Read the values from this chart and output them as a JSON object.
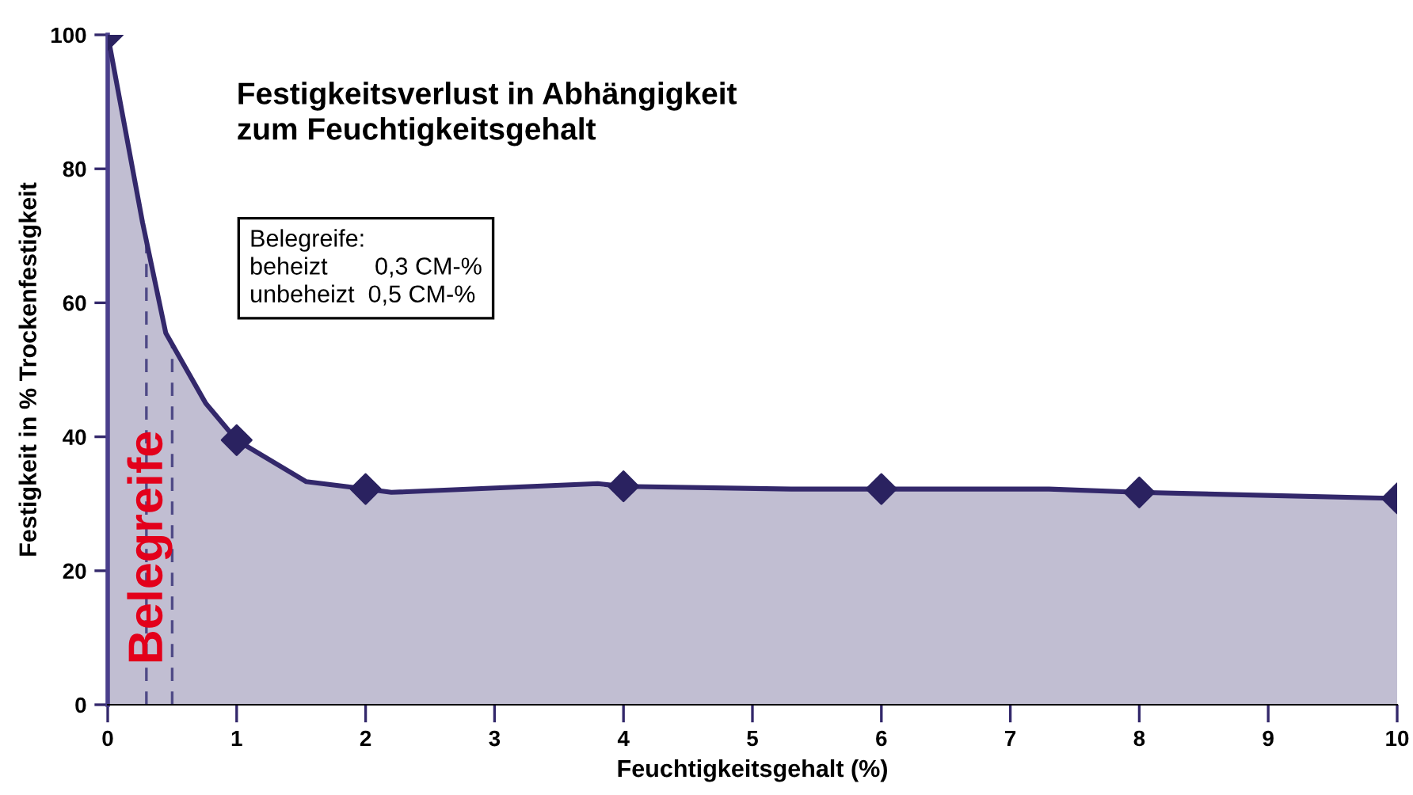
{
  "chart_data": {
    "type": "area",
    "title": "Festigkeitsverlust in Abhängigkeit\nzum Feuchtigkeitsgehalt",
    "xlabel": "Feuchtigkeitsgehalt (%)",
    "ylabel": "Festigkeit in % Trockenfestigkeit",
    "xlim": [
      0,
      10
    ],
    "ylim": [
      0,
      100
    ],
    "xticks": [
      0,
      1,
      2,
      3,
      4,
      5,
      6,
      7,
      8,
      9,
      10
    ],
    "yticks": [
      0,
      20,
      40,
      60,
      80,
      100
    ],
    "grid": false,
    "legend": false,
    "series": [
      {
        "color": "#33286b",
        "x": [
          0,
          0.27,
          0.45,
          0.76,
          1,
          1.54,
          2,
          2.2,
          3.8,
          4,
          5.3,
          6,
          7.3,
          8,
          10
        ],
        "values": [
          100,
          72,
          55.5,
          45,
          39.5,
          33.3,
          32.2,
          31.7,
          33,
          32.6,
          32.2,
          32.2,
          32.2,
          31.7,
          30.8
        ]
      },
      {
        "type": "scatter",
        "color": "#2a2260",
        "marker": "diamond",
        "x": [
          0,
          1,
          2,
          4,
          6,
          8,
          10
        ],
        "values": [
          100,
          39.5,
          32.2,
          32.6,
          32.2,
          31.7,
          30.8
        ]
      }
    ],
    "ref_lines": [
      {
        "axis": "x",
        "value": 0.3,
        "color": "#4f4a86",
        "line_style": "dashed"
      },
      {
        "axis": "x",
        "value": 0.5,
        "color": "#4f4a86",
        "line_style": "dashed"
      }
    ],
    "annotations": [
      "Belegreife",
      "Belegreife:\nbeheizt       0,3 CM-%\nunbeheizt  0,5 CM-%"
    ]
  }
}
